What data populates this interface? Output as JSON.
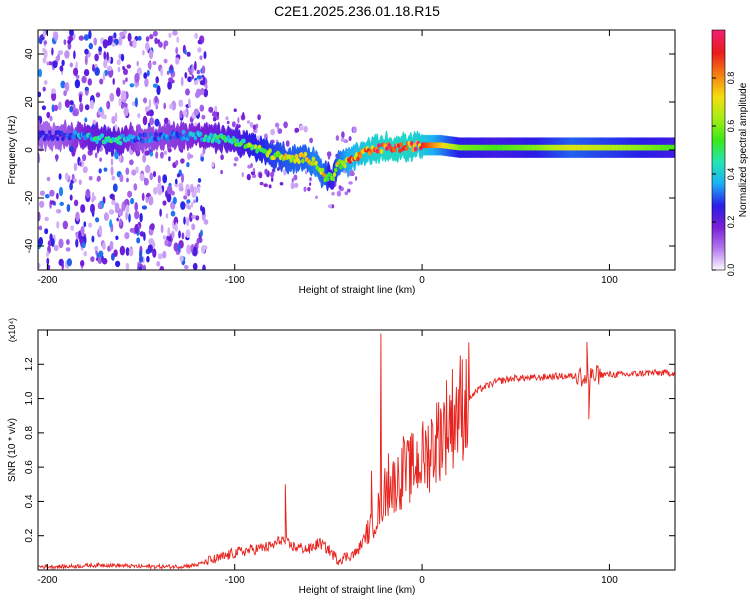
{
  "title": "C2E1.2025.236.01.18.R15",
  "chart_data": [
    {
      "type": "heatmap",
      "xlabel": "Height of straight line (km)",
      "ylabel": "Frequency (Hz)",
      "xlim": [
        -205,
        135
      ],
      "ylim": [
        -50,
        50
      ],
      "x_ticks": [
        -200,
        -100,
        0,
        100
      ],
      "y_ticks": [
        40,
        20,
        0,
        -20,
        -40
      ],
      "colorbar": {
        "label": "Normalized spectral amplitude",
        "range": [
          0,
          1
        ],
        "ticks": [
          "0.0",
          "0.2",
          "0.4",
          "0.6",
          "0.8"
        ],
        "colors": [
          "#ffffff",
          "#b57cf0",
          "#7a1fd6",
          "#2a1de8",
          "#1bb0f5",
          "#22e6b4",
          "#3be81a",
          "#a6ee14",
          "#f5dd10",
          "#f57e12",
          "#ea1c1c",
          "#f0206f"
        ]
      },
      "ridge": {
        "x": [
          -195,
          -185,
          -175,
          -165,
          -150,
          -130,
          -120,
          -110,
          -100,
          -90,
          -80,
          -70,
          -62,
          -57,
          -52,
          -48,
          -45,
          -40,
          -30,
          -20,
          -10,
          0,
          10,
          20,
          40,
          60,
          80,
          100,
          120,
          135
        ],
        "frequency": [
          6,
          6,
          5,
          4,
          5,
          6,
          6,
          5,
          4,
          1,
          -2,
          -4,
          -3,
          -5,
          -11,
          -12,
          -6,
          -5,
          -1,
          1,
          1,
          2,
          2,
          1,
          1,
          1,
          1,
          1,
          1,
          1
        ],
        "amplitude": [
          0.25,
          0.35,
          0.45,
          0.5,
          0.3,
          0.35,
          0.4,
          0.45,
          0.5,
          0.6,
          0.65,
          0.7,
          0.7,
          0.75,
          0.7,
          0.55,
          0.7,
          0.8,
          0.9,
          0.95,
          0.95,
          0.9,
          0.75,
          0.6,
          0.55,
          0.6,
          0.7,
          0.65,
          0.6,
          0.55
        ]
      },
      "noise_region_x": [
        -205,
        -115
      ]
    },
    {
      "type": "line",
      "xlabel": "Height of straight line (km)",
      "ylabel": "SNR (10 * v/v)",
      "y_scale_note": "(x10⁴)",
      "xlim": [
        -205,
        135
      ],
      "ylim": [
        0,
        1.4
      ],
      "x_ticks": [
        -200,
        -100,
        0,
        100
      ],
      "y_ticks": [
        "0.2",
        "0.4",
        "0.6",
        "0.8",
        "1.0",
        "1.2"
      ],
      "color": "#e8231d",
      "series": {
        "name": "SNR",
        "x": [
          -205,
          -190,
          -170,
          -150,
          -130,
          -120,
          -115,
          -110,
          -100,
          -90,
          -80,
          -75,
          -70,
          -60,
          -55,
          -50,
          -45,
          -40,
          -35,
          -30,
          -25,
          -22,
          -20,
          -15,
          -10,
          -5,
          0,
          5,
          10,
          15,
          20,
          25,
          30,
          40,
          50,
          60,
          70,
          80,
          85,
          88,
          90,
          95,
          100,
          110,
          120,
          135
        ],
        "y": [
          0.02,
          0.02,
          0.03,
          0.02,
          0.02,
          0.03,
          0.05,
          0.06,
          0.1,
          0.12,
          0.14,
          0.18,
          0.14,
          0.12,
          0.16,
          0.12,
          0.06,
          0.08,
          0.1,
          0.2,
          0.3,
          0.38,
          0.45,
          0.5,
          0.55,
          0.6,
          0.65,
          0.7,
          0.8,
          0.88,
          0.95,
          1.0,
          1.05,
          1.1,
          1.12,
          1.12,
          1.13,
          1.13,
          1.13,
          1.1,
          1.13,
          1.14,
          1.14,
          1.14,
          1.15,
          1.15
        ]
      },
      "spikes": [
        {
          "x": -73,
          "y": 0.5
        },
        {
          "x": -27,
          "y": 0.58
        },
        {
          "x": -22,
          "y": 1.38
        },
        {
          "x": -18,
          "y": 0.68
        },
        {
          "x": -10,
          "y": 0.78
        },
        {
          "x": 5,
          "y": 0.88
        },
        {
          "x": 20,
          "y": 1.05
        },
        {
          "x": 88,
          "y": 1.33
        },
        {
          "x": 89,
          "y": 0.88
        }
      ]
    }
  ]
}
